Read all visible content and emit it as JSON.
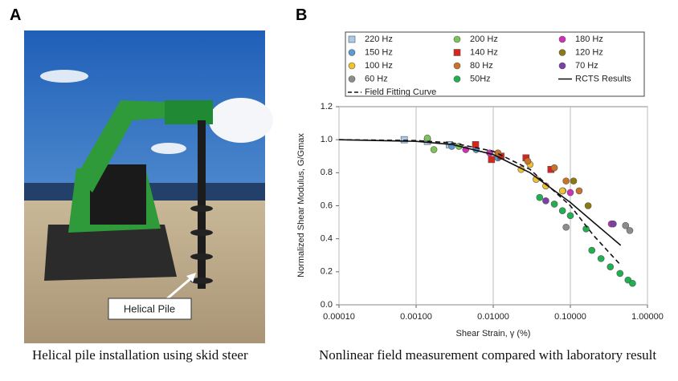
{
  "panels": [
    {
      "label": "A",
      "annotation": "Helical Pile",
      "caption": "Helical pile installation using skid steer"
    },
    {
      "label": "B",
      "caption": "Nonlinear field measurement compared with laboratory result"
    }
  ],
  "chart_data": {
    "type": "scatter",
    "x_label": "Shear Strain, γ (%)",
    "y_label": "Normalized Shear Modulus, G/Gmax",
    "xlim": [
      0.0001,
      1
    ],
    "ylim": [
      0,
      1.2
    ],
    "x_log": true,
    "grid": "x",
    "xticks": [
      {
        "value": 0.0001,
        "label": "0.00010"
      },
      {
        "value": 0.001,
        "label": "0.00100"
      },
      {
        "value": 0.01,
        "label": "0.01000"
      },
      {
        "value": 0.1,
        "label": "0.10000"
      },
      {
        "value": 1,
        "label": "1.00000"
      }
    ],
    "yticks": [
      {
        "value": 0,
        "label": "0.0"
      },
      0.2,
      0.4,
      0.6,
      0.8,
      {
        "value": 1,
        "label": "1.0"
      },
      1.2
    ],
    "series": [
      {
        "name": "220 Hz",
        "color": "#a9cbe8",
        "marker": "square",
        "x": [
          0.0007,
          0.0014,
          0.0027
        ],
        "values": [
          1.0,
          0.99,
          0.97
        ]
      },
      {
        "name": "200 Hz",
        "color": "#7cc454",
        "marker": "circle",
        "x": [
          0.0014,
          0.0017,
          0.0036
        ],
        "values": [
          1.01,
          0.94,
          0.96
        ]
      },
      {
        "name": "180 Hz",
        "color": "#d22fb8",
        "marker": "circle",
        "x": [
          0.0044,
          0.009,
          0.08,
          0.1,
          0.34
        ],
        "values": [
          0.94,
          0.92,
          0.69,
          0.68,
          0.49
        ]
      },
      {
        "name": "150 Hz",
        "color": "#5b9bd5",
        "marker": "circle",
        "x": [
          0.0029,
          0.006,
          0.0115
        ],
        "values": [
          0.96,
          0.94,
          0.89
        ]
      },
      {
        "name": "140 Hz",
        "color": "#d9241c",
        "marker": "square",
        "x": [
          0.0059,
          0.0095,
          0.0126,
          0.0266,
          0.056
        ],
        "values": [
          0.97,
          0.88,
          0.9,
          0.89,
          0.82
        ]
      },
      {
        "name": "120 Hz",
        "color": "#8a7a10",
        "marker": "circle",
        "x": [
          0.11,
          0.17
        ],
        "values": [
          0.75,
          0.6
        ]
      },
      {
        "name": "100 Hz",
        "color": "#f2c12e",
        "marker": "circle",
        "x": [
          0.023,
          0.03,
          0.036,
          0.048,
          0.079
        ],
        "values": [
          0.82,
          0.85,
          0.76,
          0.72,
          0.69
        ]
      },
      {
        "name": "80 Hz",
        "color": "#c8722a",
        "marker": "circle",
        "x": [
          0.0115,
          0.028,
          0.062,
          0.088,
          0.13
        ],
        "values": [
          0.92,
          0.87,
          0.83,
          0.75,
          0.69
        ]
      },
      {
        "name": "70 Hz",
        "color": "#7b3fa8",
        "marker": "circle",
        "x": [
          0.048,
          0.36
        ],
        "values": [
          0.63,
          0.49
        ]
      },
      {
        "name": "60 Hz",
        "color": "#8c8c8c",
        "marker": "circle",
        "x": [
          0.088,
          0.52,
          0.59
        ],
        "values": [
          0.47,
          0.48,
          0.45
        ]
      },
      {
        "name": "50Hz",
        "color": "#1fb04f",
        "marker": "circle",
        "x": [
          0.04,
          0.062,
          0.079,
          0.1,
          0.16,
          0.19,
          0.25,
          0.33,
          0.44,
          0.56,
          0.64
        ],
        "values": [
          0.65,
          0.61,
          0.57,
          0.54,
          0.46,
          0.33,
          0.28,
          0.23,
          0.19,
          0.15,
          0.13
        ]
      },
      {
        "name": "RCTS Results",
        "color": "#111111",
        "marker": "line",
        "x": [
          0.0001,
          0.001,
          0.003,
          0.01,
          0.03,
          0.1,
          0.2,
          0.45
        ],
        "values": [
          1.0,
          0.99,
          0.97,
          0.91,
          0.8,
          0.62,
          0.5,
          0.36
        ]
      },
      {
        "name": "Field Fitting Curve",
        "color": "#111111",
        "marker": "dashed",
        "x": [
          0.0001,
          0.001,
          0.003,
          0.01,
          0.03,
          0.1,
          0.2,
          0.45
        ],
        "values": [
          1.0,
          0.995,
          0.98,
          0.93,
          0.82,
          0.6,
          0.42,
          0.24
        ]
      }
    ]
  }
}
